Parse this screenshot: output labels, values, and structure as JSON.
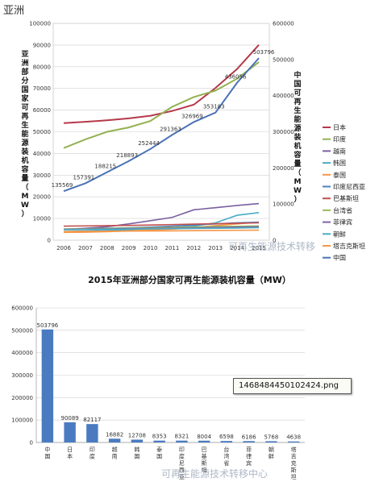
{
  "header": {
    "region_label": "亚洲"
  },
  "watermarks": {
    "line_chart": "可再生能源技术转移",
    "bar_chart": "可再生能源技术转移中心"
  },
  "tooltip": {
    "text": "1468484450102424.png"
  },
  "chart_data": [
    {
      "type": "line",
      "title": "",
      "ylabel_left": "亚洲部分国家可再生能源装机容量（MW）",
      "ylabel_right": "中国可再生能源装机容量（MW）",
      "x": [
        "2006",
        "2007",
        "2008",
        "2009",
        "2010",
        "2011",
        "2012",
        "2013",
        "2014",
        "2015"
      ],
      "ylim_left": [
        0,
        100000
      ],
      "yticks_left": [
        "0",
        "10000",
        "20000",
        "30000",
        "40000",
        "50000",
        "60000",
        "70000",
        "80000",
        "90000",
        "100000"
      ],
      "ylim_right": [
        0,
        600000
      ],
      "yticks_right": [
        "0",
        "100000",
        "200000",
        "300000",
        "400000",
        "500000",
        "600000"
      ],
      "grid": true,
      "legend_position": "right",
      "series": [
        {
          "name": "日本",
          "axis": "left",
          "color": "#b5394a",
          "values": [
            54000,
            54600,
            55300,
            56200,
            57400,
            59600,
            62500,
            70200,
            79000,
            90089
          ]
        },
        {
          "name": "印度",
          "axis": "left",
          "color": "#94b152",
          "values": [
            42500,
            46500,
            50000,
            52000,
            55000,
            61500,
            66000,
            69000,
            74500,
            82117
          ]
        },
        {
          "name": "越南",
          "axis": "left",
          "color": "#7a60a0",
          "values": [
            5000,
            5500,
            6200,
            7500,
            9000,
            10500,
            14000,
            15000,
            16000,
            16882
          ]
        },
        {
          "name": "韩国",
          "axis": "left",
          "color": "#4bacc6",
          "values": [
            4000,
            4200,
            4500,
            4800,
            5300,
            5800,
            6500,
            8000,
            11500,
            12708
          ]
        },
        {
          "name": "泰国",
          "axis": "left",
          "color": "#f79646",
          "values": [
            3600,
            3700,
            3900,
            4300,
            4700,
            5100,
            5800,
            6700,
            7500,
            8353
          ]
        },
        {
          "name": "印度尼西亚",
          "axis": "left",
          "color": "#4f81bd",
          "values": [
            5000,
            5200,
            5500,
            5700,
            6000,
            6500,
            7000,
            7500,
            8000,
            8321
          ]
        },
        {
          "name": "巴基斯坦",
          "axis": "left",
          "color": "#c0504d",
          "values": [
            6500,
            6600,
            6700,
            6800,
            7000,
            7200,
            7400,
            7600,
            7800,
            8004
          ]
        },
        {
          "name": "台湾省",
          "axis": "left",
          "color": "#9bbb59",
          "values": [
            5200,
            5300,
            5400,
            5500,
            5700,
            5900,
            6100,
            6300,
            6400,
            6598
          ]
        },
        {
          "name": "菲律宾",
          "axis": "left",
          "color": "#8064a2",
          "values": [
            5000,
            5100,
            5200,
            5300,
            5400,
            5500,
            5700,
            5900,
            6000,
            6186
          ]
        },
        {
          "name": "朝鲜",
          "axis": "left",
          "color": "#4bacc6",
          "values": [
            4800,
            4900,
            5000,
            5100,
            5200,
            5300,
            5400,
            5500,
            5600,
            5768
          ]
        },
        {
          "name": "塔吉克斯坦",
          "axis": "left",
          "color": "#f79646",
          "values": [
            4000,
            4050,
            4100,
            4200,
            4250,
            4300,
            4400,
            4500,
            4550,
            4638
          ]
        },
        {
          "name": "中国",
          "axis": "right",
          "color": "#4a72b5",
          "values": [
            135569,
            157391,
            188215,
            218893,
            252444,
            291363,
            326969,
            353183,
            436056,
            503796
          ],
          "labels": [
            "135569",
            "157391",
            "188215",
            "218893",
            "252444",
            "291363",
            "326969",
            "353183",
            "436056",
            "503796"
          ]
        }
      ]
    },
    {
      "type": "bar",
      "title": "2015年亚洲部分国家可再生能源装机容量（MW）",
      "categories": [
        "中国",
        "日本",
        "印度",
        "越南",
        "韩国",
        "泰国",
        "印度尼西亚",
        "巴基斯坦",
        "台湾省",
        "菲律宾",
        "朝鲜",
        "塔吉克斯坦"
      ],
      "values": [
        503796,
        90089,
        82117,
        16882,
        12708,
        8353,
        8321,
        8004,
        6598,
        6186,
        5768,
        4638
      ],
      "data_labels": [
        "503796",
        "90089",
        "82117",
        "16882",
        "12708",
        "8353",
        "8321",
        "8004",
        "6598",
        "6186",
        "5768",
        "4638"
      ],
      "ylim": [
        0,
        600000
      ],
      "yticks": [
        "0",
        "100000",
        "200000",
        "300000",
        "400000",
        "500000",
        "600000"
      ],
      "bar_color": "#4a7bc0",
      "grid": true
    }
  ]
}
